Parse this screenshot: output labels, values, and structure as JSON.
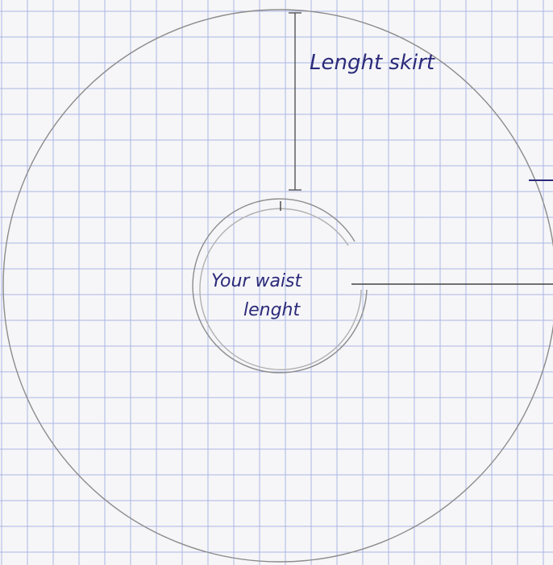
{
  "labels": {
    "skirt_length": "Lenght skirt",
    "waist_length": [
      "Your waist",
      "lenght"
    ]
  }
}
